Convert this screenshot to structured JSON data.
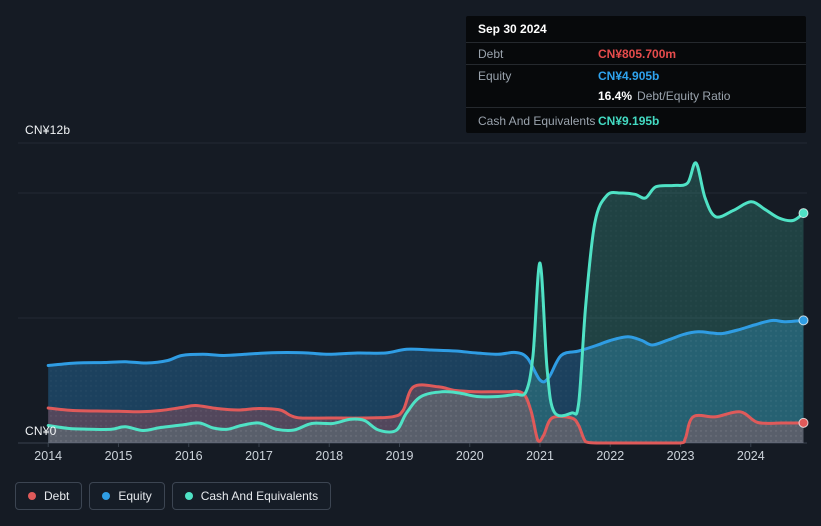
{
  "tooltip": {
    "date": "Sep 30 2024",
    "debt_label": "Debt",
    "debt_value": "CN¥805.700m",
    "equity_label": "Equity",
    "equity_value": "CN¥4.905b",
    "ratio_value": "16.4%",
    "ratio_label": "Debt/Equity Ratio",
    "cash_label": "Cash And Equivalents",
    "cash_value": "CN¥9.195b"
  },
  "y_axis": {
    "top": "CN¥12b",
    "zero": "CN¥0"
  },
  "legend": {
    "debt": "Debt",
    "equity": "Equity",
    "cash": "Cash And Equivalents"
  },
  "colors": {
    "debt": "#df5a5a",
    "equity": "#2f9de4",
    "cash": "#4fe2c5",
    "debt_value": "#e64c4c",
    "equity_value": "#2fa3ee",
    "cash_value": "#43dac2",
    "grid": "#222a34",
    "axis_line": "#39424e",
    "background": "#151b24"
  },
  "chart_data": {
    "type": "area",
    "title": "Debt, Equity and Cash And Equivalents history",
    "y_unit": "CN¥ billions",
    "xlim": [
      2013.57,
      2024.8
    ],
    "ylim": [
      0,
      12
    ],
    "y_gridlines": [
      0,
      5,
      10,
      12
    ],
    "x_ticks": [
      2014,
      2015,
      2016,
      2017,
      2018,
      2019,
      2020,
      2021,
      2022,
      2023,
      2024
    ],
    "series": [
      {
        "name": "Debt",
        "color": "#df5a5a",
        "fill_opacity": 0.28,
        "points": [
          [
            2014.0,
            1.4
          ],
          [
            2014.35,
            1.3
          ],
          [
            2014.7,
            1.28
          ],
          [
            2015.0,
            1.27
          ],
          [
            2015.3,
            1.25
          ],
          [
            2015.6,
            1.3
          ],
          [
            2015.9,
            1.42
          ],
          [
            2016.1,
            1.5
          ],
          [
            2016.4,
            1.38
          ],
          [
            2016.7,
            1.32
          ],
          [
            2017.0,
            1.38
          ],
          [
            2017.3,
            1.32
          ],
          [
            2017.45,
            1.1
          ],
          [
            2017.6,
            1.0
          ],
          [
            2018.0,
            1.0
          ],
          [
            2018.5,
            1.0
          ],
          [
            2018.9,
            1.05
          ],
          [
            2019.05,
            1.3
          ],
          [
            2019.2,
            2.25
          ],
          [
            2019.55,
            2.25
          ],
          [
            2019.8,
            2.1
          ],
          [
            2020.1,
            2.05
          ],
          [
            2020.5,
            2.05
          ],
          [
            2020.75,
            2.0
          ],
          [
            2020.87,
            1.3
          ],
          [
            2020.97,
            0.1
          ],
          [
            2021.05,
            0.3
          ],
          [
            2021.17,
            1.0
          ],
          [
            2021.45,
            1.0
          ],
          [
            2021.55,
            0.7
          ],
          [
            2021.65,
            0.05
          ],
          [
            2021.8,
            0
          ],
          [
            2022.2,
            0
          ],
          [
            2022.6,
            0
          ],
          [
            2023.0,
            0
          ],
          [
            2023.07,
            0.2
          ],
          [
            2023.18,
            1.05
          ],
          [
            2023.5,
            1.05
          ],
          [
            2023.85,
            1.25
          ],
          [
            2024.1,
            0.82
          ],
          [
            2024.45,
            0.8
          ],
          [
            2024.75,
            0.806
          ]
        ]
      },
      {
        "name": "Equity",
        "color": "#2f9de4",
        "fill_opacity": 0.3,
        "points": [
          [
            2014.0,
            3.1
          ],
          [
            2014.4,
            3.2
          ],
          [
            2014.8,
            3.22
          ],
          [
            2015.1,
            3.25
          ],
          [
            2015.4,
            3.2
          ],
          [
            2015.7,
            3.3
          ],
          [
            2015.9,
            3.5
          ],
          [
            2016.2,
            3.55
          ],
          [
            2016.5,
            3.5
          ],
          [
            2016.8,
            3.55
          ],
          [
            2017.1,
            3.6
          ],
          [
            2017.4,
            3.62
          ],
          [
            2017.7,
            3.6
          ],
          [
            2018.0,
            3.55
          ],
          [
            2018.4,
            3.6
          ],
          [
            2018.8,
            3.6
          ],
          [
            2019.1,
            3.75
          ],
          [
            2019.45,
            3.72
          ],
          [
            2019.8,
            3.68
          ],
          [
            2020.1,
            3.6
          ],
          [
            2020.4,
            3.55
          ],
          [
            2020.65,
            3.62
          ],
          [
            2020.82,
            3.4
          ],
          [
            2021.0,
            2.52
          ],
          [
            2021.12,
            2.6
          ],
          [
            2021.3,
            3.5
          ],
          [
            2021.55,
            3.68
          ],
          [
            2021.8,
            3.9
          ],
          [
            2022.0,
            4.1
          ],
          [
            2022.25,
            4.25
          ],
          [
            2022.45,
            4.1
          ],
          [
            2022.6,
            3.92
          ],
          [
            2022.85,
            4.15
          ],
          [
            2023.05,
            4.35
          ],
          [
            2023.25,
            4.45
          ],
          [
            2023.45,
            4.4
          ],
          [
            2023.6,
            4.38
          ],
          [
            2023.85,
            4.55
          ],
          [
            2024.05,
            4.72
          ],
          [
            2024.3,
            4.9
          ],
          [
            2024.5,
            4.85
          ],
          [
            2024.75,
            4.905
          ]
        ]
      },
      {
        "name": "Cash And Equivalents",
        "color": "#4fe2c5",
        "fill_opacity": 0.2,
        "points": [
          [
            2014.0,
            0.7
          ],
          [
            2014.3,
            0.58
          ],
          [
            2014.6,
            0.55
          ],
          [
            2014.9,
            0.55
          ],
          [
            2015.1,
            0.65
          ],
          [
            2015.35,
            0.5
          ],
          [
            2015.6,
            0.62
          ],
          [
            2015.9,
            0.72
          ],
          [
            2016.15,
            0.8
          ],
          [
            2016.35,
            0.6
          ],
          [
            2016.55,
            0.55
          ],
          [
            2016.75,
            0.7
          ],
          [
            2017.0,
            0.8
          ],
          [
            2017.25,
            0.55
          ],
          [
            2017.5,
            0.52
          ],
          [
            2017.75,
            0.78
          ],
          [
            2018.05,
            0.78
          ],
          [
            2018.3,
            0.95
          ],
          [
            2018.5,
            0.9
          ],
          [
            2018.7,
            0.52
          ],
          [
            2018.95,
            0.5
          ],
          [
            2019.1,
            1.2
          ],
          [
            2019.3,
            1.85
          ],
          [
            2019.6,
            2.05
          ],
          [
            2019.85,
            2.0
          ],
          [
            2020.1,
            1.86
          ],
          [
            2020.4,
            1.86
          ],
          [
            2020.65,
            1.95
          ],
          [
            2020.8,
            2.05
          ],
          [
            2020.9,
            3.5
          ],
          [
            2021.0,
            7.2
          ],
          [
            2021.1,
            3.0
          ],
          [
            2021.2,
            1.25
          ],
          [
            2021.45,
            1.2
          ],
          [
            2021.55,
            1.6
          ],
          [
            2021.65,
            5.5
          ],
          [
            2021.78,
            8.8
          ],
          [
            2021.95,
            9.9
          ],
          [
            2022.15,
            10.0
          ],
          [
            2022.35,
            9.95
          ],
          [
            2022.5,
            9.8
          ],
          [
            2022.65,
            10.25
          ],
          [
            2022.9,
            10.3
          ],
          [
            2023.1,
            10.4
          ],
          [
            2023.22,
            11.2
          ],
          [
            2023.35,
            9.8
          ],
          [
            2023.5,
            9.05
          ],
          [
            2023.75,
            9.3
          ],
          [
            2024.0,
            9.65
          ],
          [
            2024.2,
            9.35
          ],
          [
            2024.4,
            9.0
          ],
          [
            2024.6,
            8.9
          ],
          [
            2024.75,
            9.195
          ]
        ]
      }
    ]
  }
}
